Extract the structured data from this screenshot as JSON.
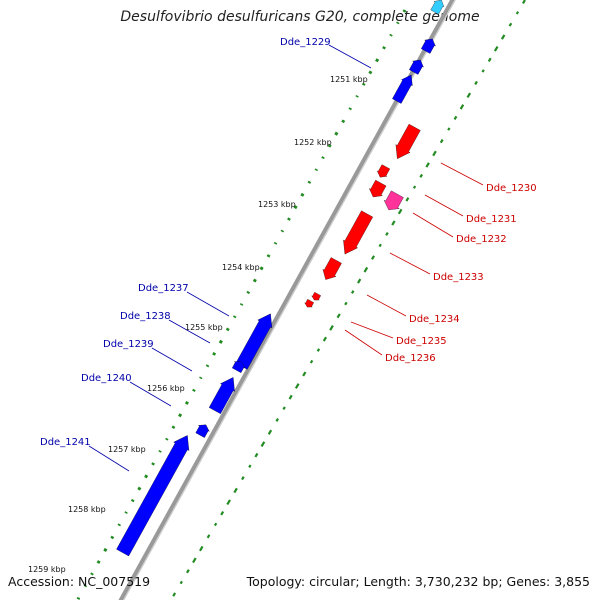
{
  "title": "Desulfovibrio desulfuricans G20, complete genome",
  "footer": {
    "accession": "Accession: NC_007519",
    "summary": "Topology: circular; Length: 3,730,232 bp; Genes: 3,855"
  },
  "ticks": [
    "1251 kbp",
    "1252 kbp",
    "1253 kbp",
    "1254 kbp",
    "1255 kbp",
    "1256 kbp",
    "1257 kbp",
    "1258 kbp",
    "1259 kbp"
  ],
  "genes_forward": [
    "Dde_1230",
    "Dde_1231",
    "Dde_1232",
    "Dde_1233",
    "Dde_1234",
    "Dde_1235",
    "Dde_1236"
  ],
  "genes_reverse": [
    "Dde_1229",
    "Dde_1237",
    "Dde_1238",
    "Dde_1239",
    "Dde_1240",
    "Dde_1241"
  ],
  "colors": {
    "forward_gene": "#ff0000",
    "forward_label": "#cc0000",
    "reverse_gene": "#0000ff",
    "reverse_label": "#0000aa",
    "highlight_gene": "#ff3399",
    "cyan_gene": "#33ccff",
    "backbone": "#999999",
    "dots": "#228b22"
  }
}
